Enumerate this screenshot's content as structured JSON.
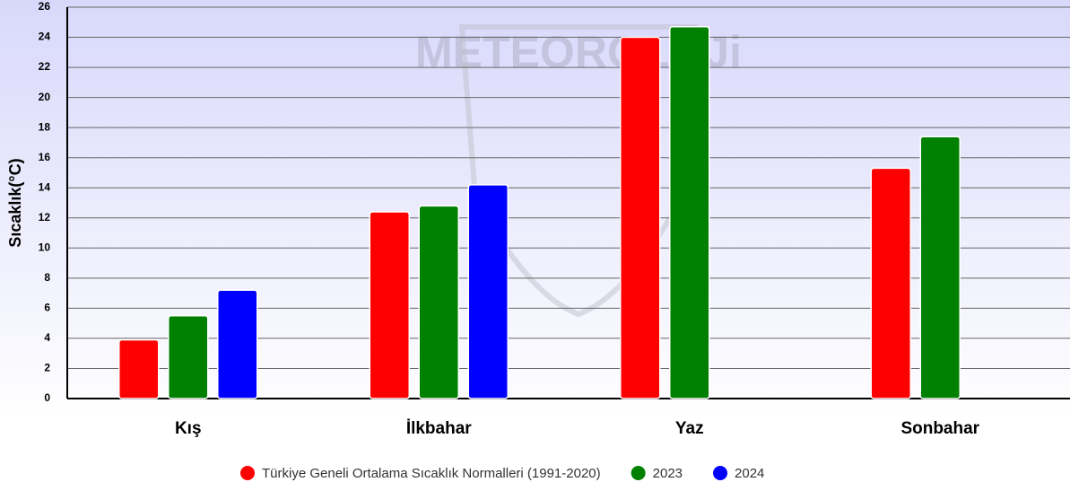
{
  "chart_data": {
    "type": "bar",
    "watermark": "METEOROLOJi",
    "y_label": "Sıcaklık(°C)",
    "categories": [
      "Kış",
      "İlkbahar",
      "Yaz",
      "Sonbahar"
    ],
    "series": [
      {
        "name": "Türkiye Geneli Ortalama Sıcaklık Normalleri (1991-2020)",
        "color": "#ff0000",
        "values": [
          3.9,
          12.4,
          24.0,
          15.3
        ]
      },
      {
        "name": "2023",
        "color": "#008000",
        "values": [
          5.5,
          12.8,
          24.7,
          17.4
        ]
      },
      {
        "name": "2024",
        "color": "#0000ff",
        "values": [
          7.2,
          14.2,
          null,
          null
        ]
      }
    ],
    "ylim": [
      0,
      26
    ],
    "yticks": [
      0,
      2,
      4,
      6,
      8,
      10,
      12,
      14,
      16,
      18,
      20,
      22,
      24,
      26
    ],
    "grid": true,
    "legend": "bottom"
  }
}
